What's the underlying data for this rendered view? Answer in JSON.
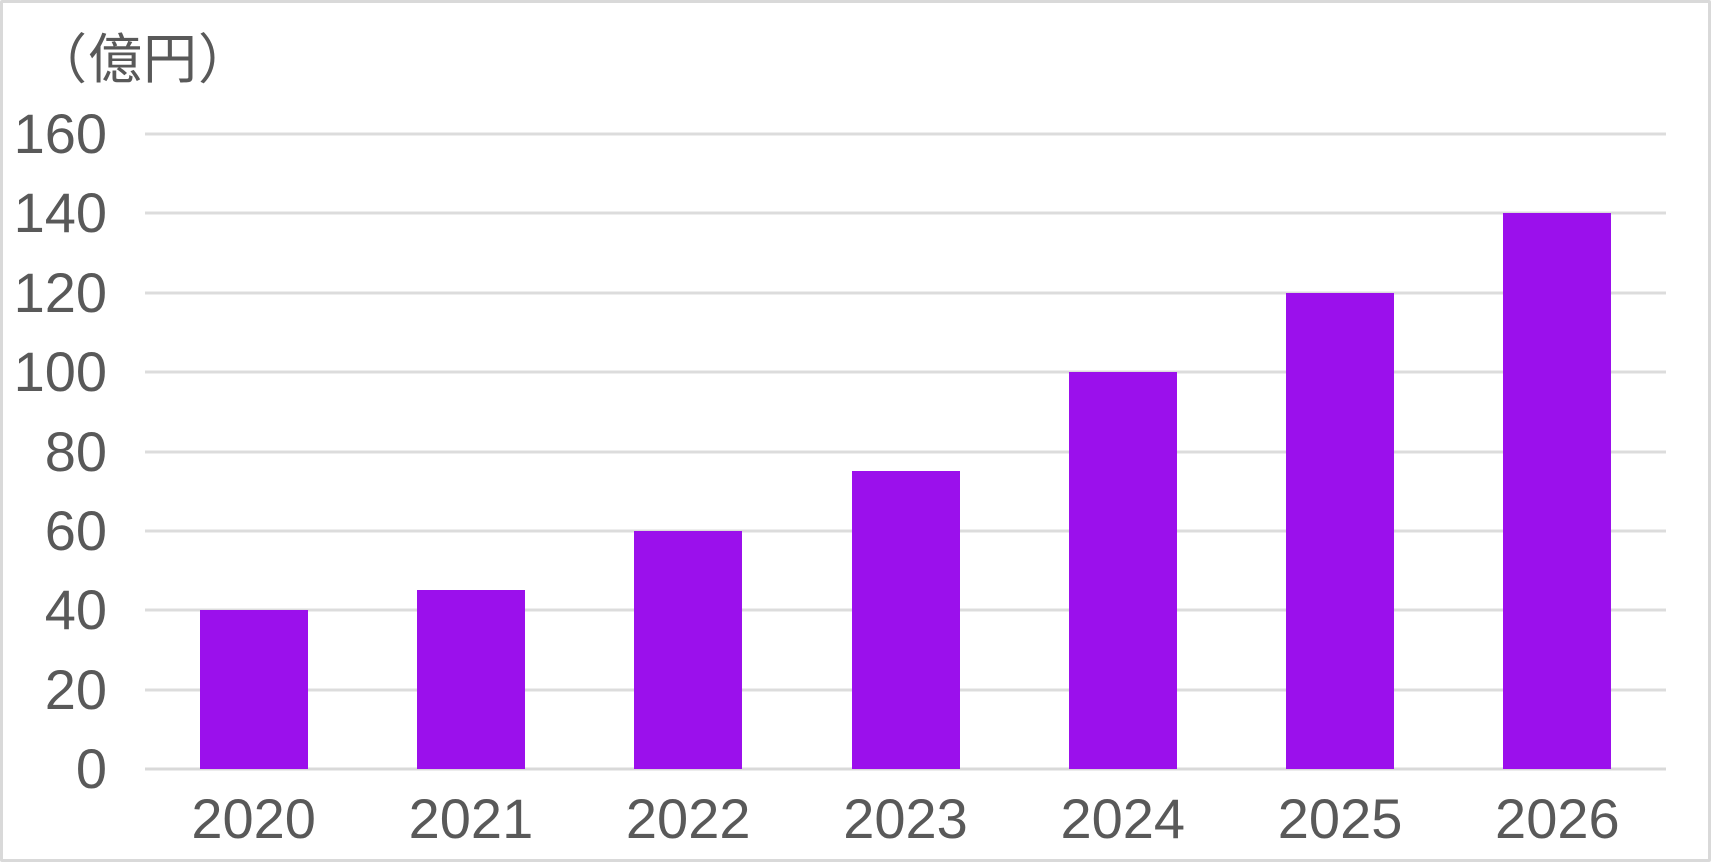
{
  "chart_data": {
    "type": "bar",
    "title": "",
    "unit_label": "（億円）",
    "categories": [
      "2020",
      "2021",
      "2022",
      "2023",
      "2024",
      "2025",
      "2026"
    ],
    "values": [
      40,
      45,
      60,
      75,
      100,
      120,
      140
    ],
    "xlabel": "",
    "ylabel": "（億円）",
    "ylim": [
      0,
      160
    ],
    "yticks": [
      0,
      20,
      40,
      60,
      80,
      100,
      120,
      140,
      160
    ],
    "grid": true,
    "legend": false,
    "colors": {
      "bar": "#9b10ec",
      "gridline": "#dcdcdc",
      "baseline": "#d9d9d9",
      "text": "#595959",
      "card_border": "#d9d9d9",
      "background": "#ffffff"
    }
  }
}
